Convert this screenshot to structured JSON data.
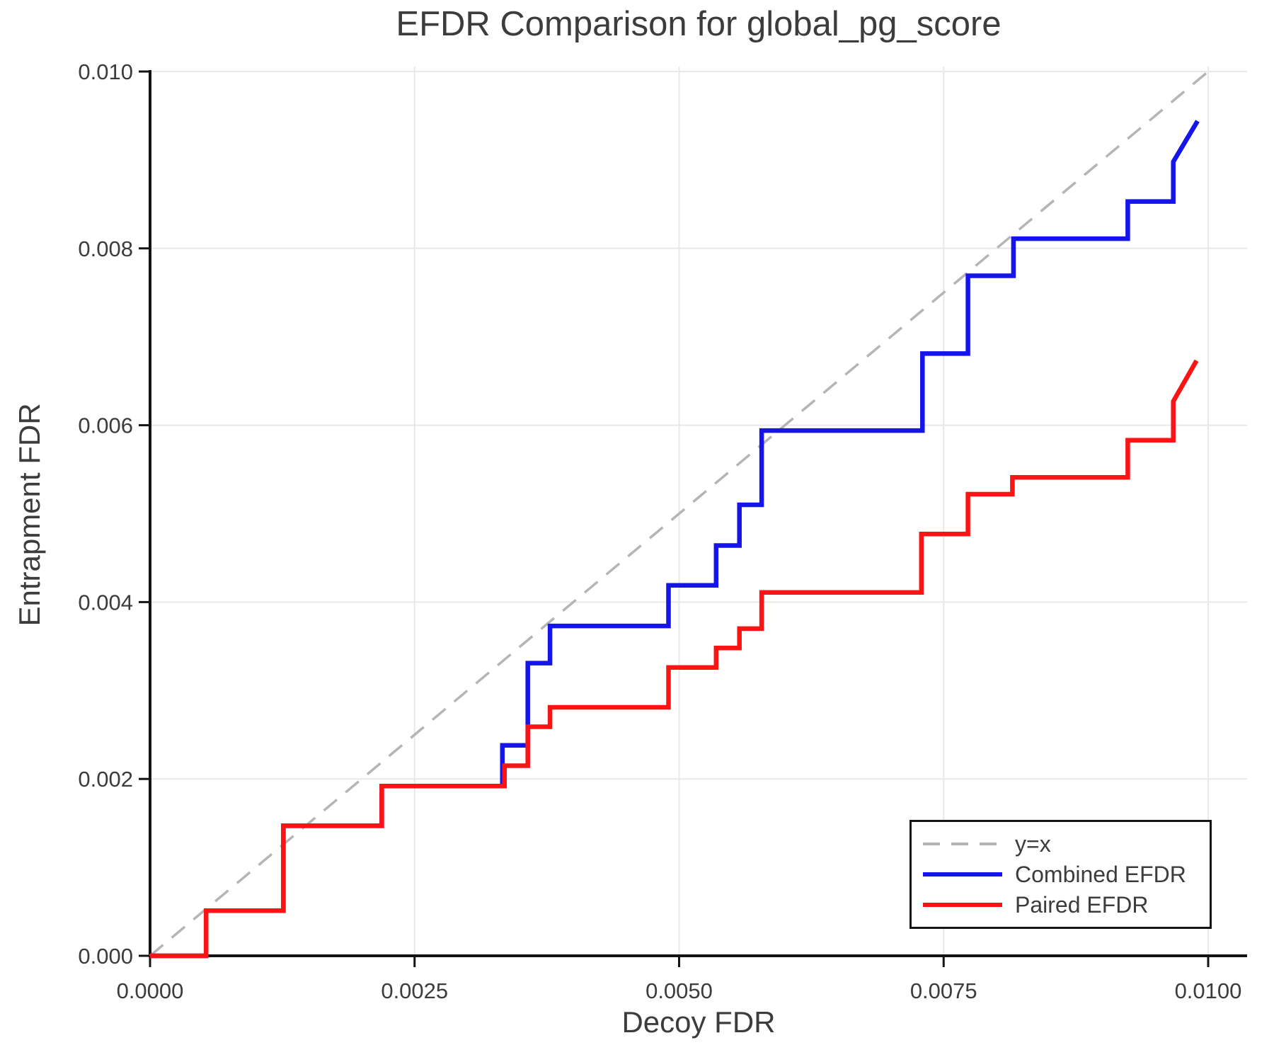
{
  "chart_data": {
    "type": "line",
    "title": "EFDR Comparison for global_pg_score",
    "xlabel": "Decoy FDR",
    "ylabel": "Entrapment FDR",
    "xlim": [
      0,
      0.010368
    ],
    "ylim": [
      0,
      0.010056
    ],
    "grid": true,
    "legend_position": "lower right",
    "x_ticks": {
      "values": [
        0,
        0.0025,
        0.005,
        0.0075,
        0.01
      ],
      "labels": [
        "0.0000",
        "0.0025",
        "0.0050",
        "0.0075",
        "0.0100"
      ]
    },
    "y_ticks": {
      "values": [
        0,
        0.002,
        0.004,
        0.006,
        0.008,
        0.01
      ],
      "labels": [
        "0.000",
        "0.002",
        "0.004",
        "0.006",
        "0.008",
        "0.010"
      ]
    },
    "colors": {
      "grid": "#e8e8e8",
      "axis": "#141414",
      "text": "#3c3c3c",
      "identity": "#b5b5b5",
      "combined": "#1414eb",
      "paired": "#fa1414"
    },
    "series": [
      {
        "id": "identity",
        "name": "y=x",
        "dash": true,
        "color": "#b5b5b5",
        "points": [
          [
            0,
            0
          ],
          [
            0.01,
            0.01
          ]
        ]
      },
      {
        "id": "combined-efdr",
        "name": "Combined EFDR",
        "dash": false,
        "color": "#1414eb",
        "points": [
          [
            0,
            0
          ],
          [
            0.00053,
            0
          ],
          [
            0.00053,
            0.00051
          ],
          [
            0.00126,
            0.00051
          ],
          [
            0.00126,
            0.00147
          ],
          [
            0.00219,
            0.00147
          ],
          [
            0.00219,
            0.00192
          ],
          [
            0.00333,
            0.00192
          ],
          [
            0.00333,
            0.00238
          ],
          [
            0.00357,
            0.00238
          ],
          [
            0.00357,
            0.00331
          ],
          [
            0.00378,
            0.00331
          ],
          [
            0.00378,
            0.00373
          ],
          [
            0.0049,
            0.00373
          ],
          [
            0.0049,
            0.00419
          ],
          [
            0.00535,
            0.00419
          ],
          [
            0.00535,
            0.00464
          ],
          [
            0.00557,
            0.00464
          ],
          [
            0.00557,
            0.0051
          ],
          [
            0.00578,
            0.0051
          ],
          [
            0.00578,
            0.00594
          ],
          [
            0.0073,
            0.00594
          ],
          [
            0.0073,
            0.00681
          ],
          [
            0.00773,
            0.00681
          ],
          [
            0.00773,
            0.00769
          ],
          [
            0.00816,
            0.00769
          ],
          [
            0.00816,
            0.00811
          ],
          [
            0.00924,
            0.00811
          ],
          [
            0.00924,
            0.00853
          ],
          [
            0.00967,
            0.00853
          ],
          [
            0.00967,
            0.00898
          ],
          [
            0.0099,
            0.00944
          ]
        ]
      },
      {
        "id": "paired-efdr",
        "name": "Paired EFDR",
        "dash": false,
        "color": "#fa1414",
        "points": [
          [
            0,
            0
          ],
          [
            0.00053,
            0
          ],
          [
            0.00053,
            0.00051
          ],
          [
            0.00126,
            0.00051
          ],
          [
            0.00126,
            0.00147
          ],
          [
            0.00219,
            0.00147
          ],
          [
            0.00219,
            0.00192
          ],
          [
            0.00335,
            0.00192
          ],
          [
            0.00335,
            0.00215
          ],
          [
            0.00357,
            0.00215
          ],
          [
            0.00357,
            0.00259
          ],
          [
            0.00378,
            0.00259
          ],
          [
            0.00378,
            0.00281
          ],
          [
            0.0049,
            0.00281
          ],
          [
            0.0049,
            0.00326
          ],
          [
            0.00535,
            0.00326
          ],
          [
            0.00535,
            0.00348
          ],
          [
            0.00557,
            0.00348
          ],
          [
            0.00557,
            0.0037
          ],
          [
            0.00578,
            0.0037
          ],
          [
            0.00578,
            0.00411
          ],
          [
            0.00729,
            0.00411
          ],
          [
            0.00729,
            0.00477
          ],
          [
            0.00773,
            0.00477
          ],
          [
            0.00773,
            0.00522
          ],
          [
            0.00815,
            0.00522
          ],
          [
            0.00815,
            0.00541
          ],
          [
            0.00924,
            0.00541
          ],
          [
            0.00924,
            0.00583
          ],
          [
            0.00967,
            0.00583
          ],
          [
            0.00967,
            0.00627
          ],
          [
            0.00989,
            0.00673
          ]
        ]
      }
    ]
  }
}
